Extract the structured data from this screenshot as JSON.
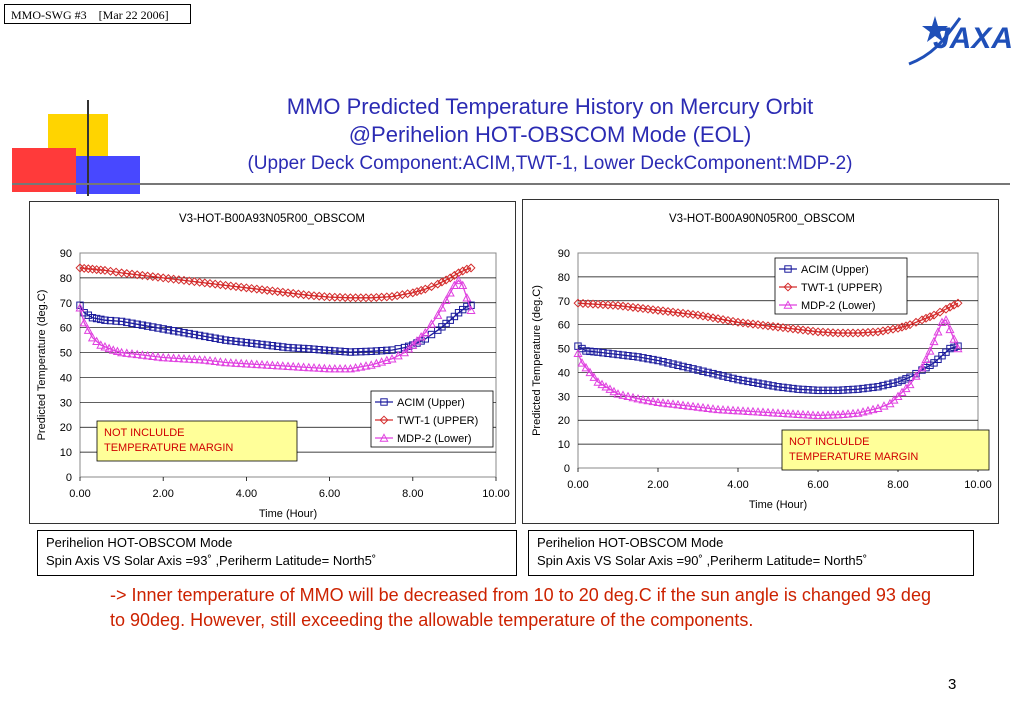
{
  "header": {
    "label": "MMO-SWG #3    [Mar 22 2006]"
  },
  "logo": {
    "text": "JAXA",
    "color": "#1f4fb8"
  },
  "title": {
    "line1": "MMO Predicted Temperature History on Mercury Orbit",
    "line2": "@Perihelion HOT-OBSCOM Mode (EOL)",
    "line3": "(Upper Deck Component:ACIM,TWT-1,  Lower DeckComponent:MDP-2)",
    "color": "#2b2bb3"
  },
  "chart_data": [
    {
      "type": "line",
      "title": "V3-HOT-B00A93N05R00_OBSCOM",
      "xlabel": "Time (Hour)",
      "ylabel": "Predicted Temperature (deg.C)",
      "xlim": [
        0,
        10
      ],
      "ylim": [
        0,
        90
      ],
      "xticks": [
        "0.00",
        "2.00",
        "4.00",
        "6.00",
        "8.00",
        "10.00"
      ],
      "yticks": [
        "0",
        "10",
        "20",
        "30",
        "40",
        "50",
        "60",
        "70",
        "80",
        "90"
      ],
      "grid": true,
      "legend_position": "bottom-right",
      "annotation": "NOT INCLULDE\nTEMPERATURE MARGIN",
      "series": [
        {
          "name": "ACIM (Upper)",
          "color": "#1a1a9c",
          "marker": "square",
          "x": [
            0,
            0.1,
            0.3,
            0.6,
            1,
            1.5,
            2,
            2.5,
            3,
            3.5,
            4,
            4.5,
            5,
            5.5,
            6,
            6.5,
            7,
            7.5,
            7.8,
            8,
            8.3,
            8.6,
            8.9,
            9.1,
            9.3,
            9.4
          ],
          "y": [
            69,
            66,
            64,
            63,
            62.5,
            61,
            59.5,
            58,
            56.5,
            55,
            54,
            53,
            52,
            51.5,
            50.8,
            50.2,
            50.5,
            51,
            52,
            53,
            55.5,
            59,
            63,
            66,
            68.5,
            69
          ]
        },
        {
          "name": "TWT-1 (UPPER)",
          "color": "#d42c2c",
          "marker": "diamond",
          "x": [
            0,
            0.3,
            0.6,
            1,
            1.5,
            2,
            2.5,
            3,
            3.5,
            4,
            4.5,
            5,
            5.5,
            6,
            6.5,
            7,
            7.5,
            8,
            8.3,
            8.6,
            8.9,
            9.1,
            9.3,
            9.4
          ],
          "y": [
            84,
            83.5,
            83,
            82,
            81,
            80,
            79,
            78,
            77,
            76,
            75,
            74,
            73,
            72.3,
            72,
            72,
            72.5,
            74,
            75.5,
            77.5,
            80,
            82,
            83.5,
            84
          ]
        },
        {
          "name": "MDP-2 (Lower)",
          "color": "#e040e0",
          "marker": "triangle",
          "x": [
            0,
            0.1,
            0.3,
            0.5,
            0.8,
            1,
            1.5,
            2,
            2.5,
            3,
            3.5,
            4,
            4.5,
            5,
            5.5,
            6,
            6.5,
            7,
            7.5,
            7.8,
            8,
            8.3,
            8.6,
            8.8,
            9,
            9.1,
            9.2,
            9.3,
            9.4
          ],
          "y": [
            68,
            62,
            56,
            53,
            51,
            50,
            49,
            48,
            47.5,
            47,
            46,
            45.5,
            45,
            44.5,
            44,
            43.5,
            43.5,
            45,
            47.5,
            50,
            53,
            58,
            65,
            71,
            77,
            79,
            77,
            72,
            67
          ]
        }
      ]
    },
    {
      "type": "line",
      "title": "V3-HOT-B00A90N05R00_OBSCOM",
      "xlabel": "Time (Hour)",
      "ylabel": "Predicted Temperature (deg.C)",
      "xlim": [
        0,
        10
      ],
      "ylim": [
        0,
        90
      ],
      "xticks": [
        "0.00",
        "2.00",
        "4.00",
        "6.00",
        "8.00",
        "10.00"
      ],
      "yticks": [
        "0",
        "10",
        "20",
        "30",
        "40",
        "50",
        "60",
        "70",
        "80",
        "90"
      ],
      "grid": true,
      "legend_position": "top-right",
      "annotation": "NOT INCLULDE\nTEMPERATURE MARGIN",
      "series": [
        {
          "name": "ACIM (Upper)",
          "color": "#1a1a9c",
          "marker": "square",
          "x": [
            0,
            0.2,
            0.5,
            1,
            1.5,
            2,
            2.5,
            3,
            3.5,
            4,
            4.5,
            5,
            5.5,
            6,
            6.5,
            7,
            7.5,
            8,
            8.3,
            8.6,
            8.9,
            9.1,
            9.3,
            9.5
          ],
          "y": [
            51,
            49,
            48.5,
            47.5,
            46.5,
            45,
            43,
            41,
            39,
            37,
            35.5,
            34,
            33,
            32.5,
            32.5,
            33,
            34,
            36,
            38,
            41,
            44,
            47,
            50,
            51
          ]
        },
        {
          "name": "TWT-1 (UPPER)",
          "color": "#d42c2c",
          "marker": "diamond",
          "x": [
            0,
            0.5,
            1,
            1.5,
            2,
            2.5,
            3,
            3.5,
            4,
            4.5,
            5,
            5.5,
            6,
            6.5,
            7,
            7.5,
            8,
            8.3,
            8.6,
            8.9,
            9.2,
            9.5
          ],
          "y": [
            69,
            68.5,
            68,
            67,
            66,
            65,
            64,
            62.5,
            61,
            60,
            59,
            58,
            57,
            56.5,
            56.5,
            57,
            58.5,
            60,
            62,
            64,
            66.5,
            69
          ]
        },
        {
          "name": "MDP-2 (Lower)",
          "color": "#e040e0",
          "marker": "triangle",
          "x": [
            0,
            0.1,
            0.3,
            0.5,
            0.8,
            1,
            1.5,
            2,
            2.5,
            3,
            3.5,
            4,
            4.5,
            5,
            5.5,
            6,
            6.5,
            7,
            7.5,
            7.8,
            8,
            8.3,
            8.6,
            8.8,
            9,
            9.1,
            9.2,
            9.3,
            9.4,
            9.5
          ],
          "y": [
            48,
            44,
            40,
            36,
            33,
            31,
            29,
            27.5,
            26.5,
            25.5,
            24.5,
            24,
            23.5,
            23,
            22.5,
            22,
            22.3,
            23,
            25,
            27,
            30,
            35,
            42,
            49,
            57,
            61,
            62,
            58,
            54,
            50
          ]
        }
      ]
    }
  ],
  "captions": [
    {
      "line1": "Perihelion HOT-OBSCOM Mode",
      "line2": "Spin Axis VS Solar Axis =93˚ ,Periherm Latitude= North5˚"
    },
    {
      "line1": "Perihelion HOT-OBSCOM Mode",
      "line2": "Spin Axis VS Solar Axis =90˚ ,Periherm Latitude= North5˚"
    }
  ],
  "note": {
    "text": "-> Inner temperature of MMO will be decreased from 10 to 20 deg.C if the sun angle is changed 93 deg to 90deg.   However, still exceeding the allowable temperature of the components.",
    "color": "#cc2200"
  },
  "page": {
    "number": "3"
  }
}
